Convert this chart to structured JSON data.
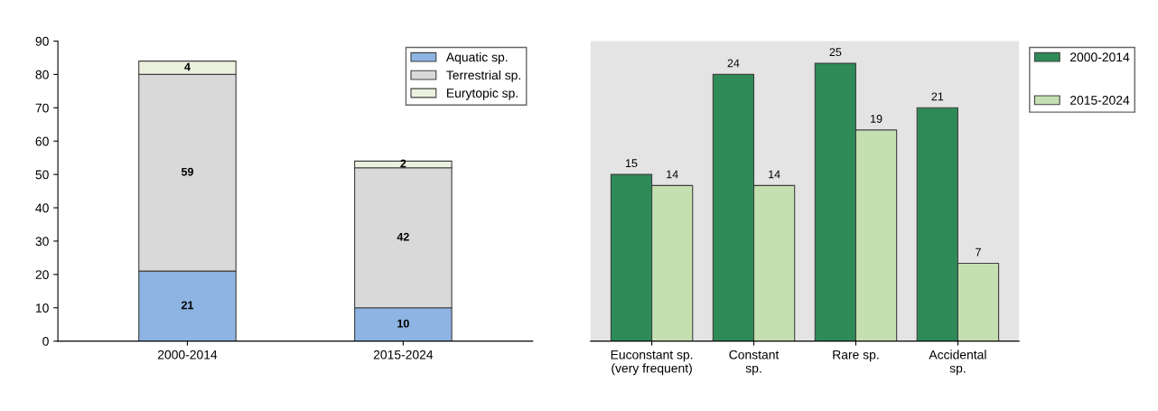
{
  "chart_data": [
    {
      "type": "bar",
      "stacked": true,
      "categories": [
        "2000-2014",
        "2015-2024"
      ],
      "series": [
        {
          "name": "Aquatic sp.",
          "color": "#8db4e2",
          "values": [
            21,
            10
          ]
        },
        {
          "name": "Terrestrial sp.",
          "color": "#d9d9d9",
          "values": [
            59,
            42
          ]
        },
        {
          "name": "Eurytopic sp.",
          "color": "#ebf1de",
          "values": [
            4,
            2
          ]
        }
      ],
      "ylim": [
        0,
        90
      ],
      "yticks": [
        0,
        10,
        20,
        30,
        40,
        50,
        60,
        70,
        80,
        90
      ],
      "data_labels": true,
      "legend": "top right",
      "grid": false
    },
    {
      "type": "bar",
      "categories": [
        "Euconstant sp.\n(very frequent)",
        "Constant\nsp.",
        "Rare sp.",
        "Accidental\nsp."
      ],
      "series": [
        {
          "name": "2000-2014",
          "color": "#2e8b57",
          "values": [
            15,
            24,
            25,
            21
          ]
        },
        {
          "name": "2015-2024",
          "color": "#c4e0b0",
          "values": [
            14,
            14,
            19,
            7
          ]
        }
      ],
      "data_labels": true,
      "legend": "right",
      "tick_labels": "x",
      "grid": false
    }
  ]
}
